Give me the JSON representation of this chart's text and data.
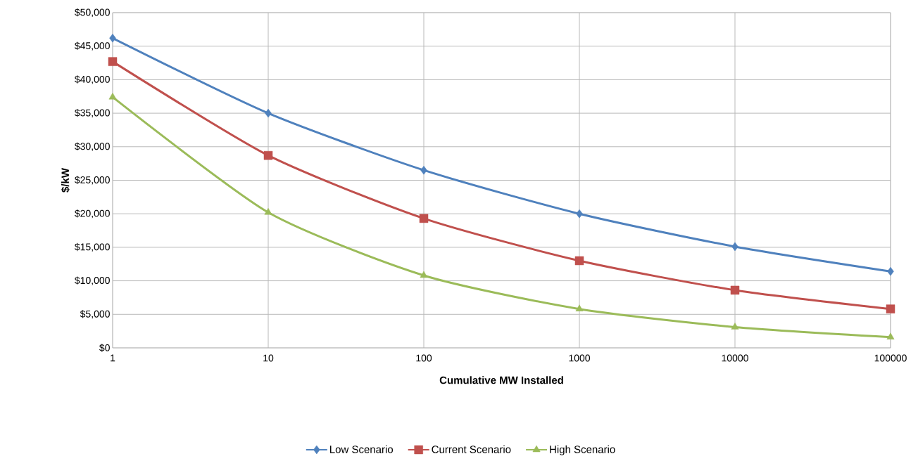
{
  "chart_data": {
    "type": "line",
    "xlabel": "Cumulative MW Installed",
    "ylabel": "$/kW",
    "log": "x",
    "grid": true,
    "legend": "bottom",
    "x": [
      1,
      10,
      100,
      1000,
      10000,
      100000
    ],
    "xlim": [
      1,
      100000
    ],
    "xticks": [
      1,
      10,
      100,
      1000,
      10000,
      100000
    ],
    "ylim": [
      0,
      50000
    ],
    "yticks": [
      {
        "value": 0,
        "label": "$0"
      },
      {
        "value": 5000,
        "label": "$5,000"
      },
      {
        "value": 10000,
        "label": "$10,000"
      },
      {
        "value": 15000,
        "label": "$15,000"
      },
      {
        "value": 20000,
        "label": "$20,000"
      },
      {
        "value": 25000,
        "label": "$25,000"
      },
      {
        "value": 30000,
        "label": "$30,000"
      },
      {
        "value": 35000,
        "label": "$35,000"
      },
      {
        "value": 40000,
        "label": "$40,000"
      },
      {
        "value": 45000,
        "label": "$45,000"
      },
      {
        "value": 50000,
        "label": "$50,000"
      }
    ],
    "series": [
      {
        "name": "Low Scenario",
        "color": "#4f81bd",
        "marker": "diamond",
        "values": [
          46200,
          35000,
          26500,
          20000,
          15100,
          11400
        ]
      },
      {
        "name": "Current Scenario",
        "color": "#c0504d",
        "marker": "square",
        "values": [
          42700,
          28700,
          19300,
          13000,
          8600,
          5800
        ]
      },
      {
        "name": "High Scenario",
        "color": "#9bbb59",
        "marker": "triangle",
        "values": [
          37400,
          20200,
          10800,
          5800,
          3100,
          1600
        ]
      }
    ]
  }
}
